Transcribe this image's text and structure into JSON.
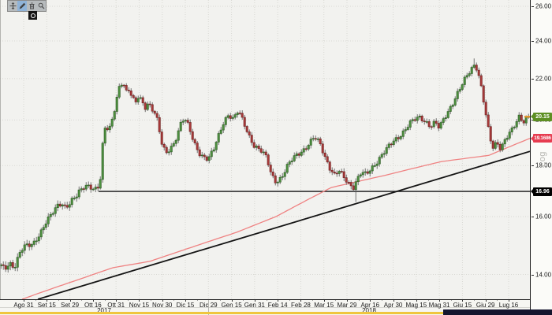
{
  "toolbar": {
    "buttons": [
      {
        "id": "move",
        "icon": "move-icon",
        "active": false
      },
      {
        "id": "draw",
        "icon": "pencil-icon",
        "active": true
      },
      {
        "id": "delete",
        "icon": "trash-icon",
        "active": false
      },
      {
        "id": "zoom",
        "icon": "magnifier-icon",
        "active": false
      }
    ]
  },
  "chart_data": {
    "type": "candlestick",
    "scale_label": "Log",
    "x_axis": {
      "labels": [
        "Ago 31",
        "Set 15",
        "Set 29",
        "Ott 16",
        "Ott 31",
        "Nov 15",
        "Nov 30",
        "Dic 15",
        "Dic 29",
        "Gen 15",
        "Gen 31",
        "Feb 14",
        "Feb 28",
        "Mar 15",
        "Mar 29",
        "Apr 16",
        "Apr 30",
        "Mag 15",
        "Mag 31",
        "Giu 15",
        "Giu 29",
        "Lug 16"
      ],
      "years": [
        {
          "label": "2017",
          "divider_after_label_index": 8
        },
        {
          "label": "2018"
        }
      ]
    },
    "y_axis": {
      "scale": "log",
      "tick_labels": [
        "14.00",
        "16.00",
        "18.00",
        "20.00",
        "22.00",
        "24.00",
        "26.00"
      ],
      "tick_values": [
        14,
        16,
        18,
        20,
        22,
        24,
        26
      ],
      "ylim": [
        13.222,
        26.38
      ]
    },
    "series": {
      "name": "price-candles",
      "candle_count": 224,
      "close_keyframes": [
        [
          0,
          14.3
        ],
        [
          6,
          14.15
        ],
        [
          12,
          14.4
        ],
        [
          18,
          14.25
        ],
        [
          24,
          14.65
        ],
        [
          30,
          14.9
        ],
        [
          36,
          14.95
        ],
        [
          42,
          15.05
        ],
        [
          48,
          15.3
        ],
        [
          54,
          15.55
        ],
        [
          58,
          15.75
        ],
        [
          64,
          16.0
        ],
        [
          68,
          16.2
        ],
        [
          73,
          16.45
        ],
        [
          78,
          16.55
        ],
        [
          83,
          16.35
        ],
        [
          88,
          16.45
        ],
        [
          92,
          16.6
        ],
        [
          96,
          16.7
        ],
        [
          100,
          16.95
        ],
        [
          104,
          17.1
        ],
        [
          108,
          17.25
        ],
        [
          112,
          17.2
        ],
        [
          116,
          17.1
        ],
        [
          120,
          16.98
        ],
        [
          124,
          17.05
        ],
        [
          127,
          17.35
        ],
        [
          129,
          18.2
        ],
        [
          131,
          19.3
        ],
        [
          134,
          19.8
        ],
        [
          138,
          19.6
        ],
        [
          141,
          19.9
        ],
        [
          144,
          20.3
        ],
        [
          148,
          21.0
        ],
        [
          152,
          21.6
        ],
        [
          156,
          21.75
        ],
        [
          160,
          21.3
        ],
        [
          164,
          21.5
        ],
        [
          168,
          21.1
        ],
        [
          172,
          20.9
        ],
        [
          176,
          21.2
        ],
        [
          180,
          20.8
        ],
        [
          184,
          20.5
        ],
        [
          188,
          20.7
        ],
        [
          193,
          20.5
        ],
        [
          198,
          20.3
        ],
        [
          202,
          19.6
        ],
        [
          206,
          18.85
        ],
        [
          211,
          18.5
        ],
        [
          216,
          18.65
        ],
        [
          221,
          18.9
        ],
        [
          226,
          19.5
        ],
        [
          231,
          20.1
        ],
        [
          236,
          20.05
        ],
        [
          241,
          19.5
        ],
        [
          246,
          18.9
        ],
        [
          252,
          18.5
        ],
        [
          257,
          18.4
        ],
        [
          264,
          18.35
        ],
        [
          271,
          18.7
        ],
        [
          278,
          19.3
        ],
        [
          284,
          19.9
        ],
        [
          290,
          20.3
        ],
        [
          296,
          20.1
        ],
        [
          302,
          20.45
        ],
        [
          308,
          19.9
        ],
        [
          315,
          19.3
        ],
        [
          322,
          18.9
        ],
        [
          330,
          18.7
        ],
        [
          338,
          18.3
        ],
        [
          344,
          17.6
        ],
        [
          350,
          17.35
        ],
        [
          357,
          17.55
        ],
        [
          364,
          17.95
        ],
        [
          371,
          18.25
        ],
        [
          378,
          18.5
        ],
        [
          385,
          18.7
        ],
        [
          392,
          18.95
        ],
        [
          399,
          19.2
        ],
        [
          406,
          18.9
        ],
        [
          412,
          18.4
        ],
        [
          418,
          17.95
        ],
        [
          424,
          17.6
        ],
        [
          430,
          17.75
        ],
        [
          436,
          17.5
        ],
        [
          442,
          17.3
        ],
        [
          448,
          17.15
        ],
        [
          453,
          17.45
        ],
        [
          458,
          17.7
        ],
        [
          464,
          17.6
        ],
        [
          470,
          17.85
        ],
        [
          477,
          18.15
        ],
        [
          484,
          18.45
        ],
        [
          491,
          18.7
        ],
        [
          498,
          19.0
        ],
        [
          505,
          19.25
        ],
        [
          512,
          19.5
        ],
        [
          519,
          19.8
        ],
        [
          526,
          20.0
        ],
        [
          533,
          20.15
        ],
        [
          540,
          19.95
        ],
        [
          546,
          19.7
        ],
        [
          552,
          19.85
        ],
        [
          557,
          19.6
        ],
        [
          563,
          20.1
        ],
        [
          570,
          20.55
        ],
        [
          577,
          21.0
        ],
        [
          584,
          21.5
        ],
        [
          590,
          22.0
        ],
        [
          596,
          22.45
        ],
        [
          601,
          22.75
        ],
        [
          605,
          22.55
        ],
        [
          609,
          21.8
        ],
        [
          613,
          20.9
        ],
        [
          617,
          20.0
        ],
        [
          621,
          19.2
        ],
        [
          625,
          18.8
        ],
        [
          630,
          19.05
        ],
        [
          635,
          18.75
        ],
        [
          640,
          19.05
        ],
        [
          645,
          19.3
        ],
        [
          650,
          19.55
        ],
        [
          655,
          19.95
        ],
        [
          659,
          20.25
        ],
        [
          663,
          19.95
        ],
        [
          667,
          20.05
        ],
        [
          671,
          20.15
        ]
      ],
      "notable_points": {
        "spike_low": {
          "x": 451,
          "low": 16.55
        },
        "spike_high": {
          "x": 601,
          "high": 23.05
        }
      },
      "last_close": 20.15
    },
    "overlays": {
      "moving_average": {
        "color": "#ef8282",
        "last_value": 19.1686,
        "keyframes": [
          [
            28,
            13.222
          ],
          [
            60,
            13.5
          ],
          [
            100,
            13.84
          ],
          [
            143,
            14.22
          ],
          [
            190,
            14.43
          ],
          [
            240,
            14.88
          ],
          [
            300,
            15.43
          ],
          [
            350,
            16.0
          ],
          [
            420,
            17.11
          ],
          [
            487,
            17.59
          ],
          [
            560,
            18.17
          ],
          [
            620,
            18.43
          ],
          [
            672,
            19.1686
          ]
        ]
      },
      "horizontal_line": {
        "price": 16.96,
        "start_x": 125,
        "color": "#101010"
      },
      "trendline": {
        "x1": 48,
        "price1": 13.222,
        "x2": 672,
        "price2": 18.6,
        "color": "#141414"
      }
    },
    "badges": {
      "last_price": {
        "value": "20.15",
        "color": "#5d8f23",
        "price": 20.15
      },
      "ma_value": {
        "value": "19.1686",
        "color": "#e63c50",
        "price": 19.1686
      },
      "level": {
        "value": "16.96",
        "color": "#000000",
        "price": 16.96
      }
    },
    "colors": {
      "up_fill": "#4e9140",
      "up_stroke": "#2b5a21",
      "down_fill": "#a93a3a",
      "down_stroke": "#6e2222",
      "wick": "#555555",
      "grid": "#d8d8d3",
      "marker_orange": "#e2962f",
      "plot_bg": "#f2f2ef"
    }
  },
  "scrollbar": {
    "loaded_color": "#efc63e",
    "more_color": "#15152e"
  },
  "handle_glyph": "circle-dot"
}
